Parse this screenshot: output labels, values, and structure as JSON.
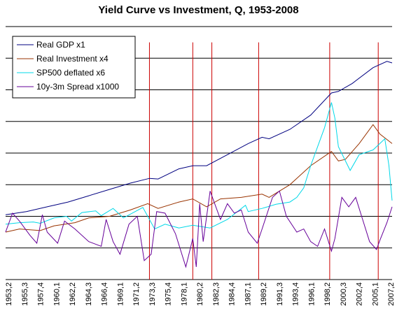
{
  "chart_data": {
    "type": "line",
    "title": "Yield Curve vs Investment, Q, 1953-2008",
    "xlabel": "",
    "ylabel": "",
    "x_range": [
      1953.0,
      2008.75
    ],
    "y_range": [
      -1,
      7
    ],
    "grid": true,
    "legend_placement": "top-left",
    "x_tick_labels": [
      "1953,2",
      "1955,3",
      "1957,4",
      "1960,1",
      "1962,2",
      "1964,3",
      "1966,4",
      "1969,1",
      "1971,2",
      "1973,3",
      "1975,4",
      "1978,1",
      "1980,2",
      "1982,3",
      "1984,4",
      "1987,1",
      "1989,2",
      "1991,3",
      "1993,4",
      "1996,1",
      "1998,2",
      "2000,3",
      "2002,4",
      "2005,1",
      "2007,2"
    ],
    "recession_lines": [
      1973.75,
      1980.0,
      1982.75,
      1989.5,
      1999.75,
      2006.75
    ],
    "recession_color": "#cc0000",
    "series": [
      {
        "name": "Real GDP x1",
        "color": "#000080",
        "x": [
          1953.0,
          1956,
          1959,
          1962,
          1965,
          1968,
          1971,
          1973.75,
          1975,
          1978,
          1980,
          1982,
          1985,
          1988,
          1990,
          1991,
          1994,
          1997,
          2000,
          2001,
          2003,
          2006,
          2008,
          2008.75
        ],
        "y": [
          1.05,
          1.15,
          1.3,
          1.45,
          1.65,
          1.85,
          2.05,
          2.2,
          2.18,
          2.5,
          2.6,
          2.6,
          2.95,
          3.3,
          3.5,
          3.45,
          3.75,
          4.2,
          4.9,
          4.95,
          5.2,
          5.7,
          5.9,
          5.85
        ]
      },
      {
        "name": "Real Investment x4",
        "color": "#993300",
        "x": [
          1953.0,
          1955,
          1958,
          1960,
          1963,
          1965,
          1968,
          1971,
          1973.5,
          1975,
          1978,
          1980,
          1982,
          1984,
          1987,
          1990,
          1991,
          1994,
          1997,
          2000,
          2001,
          2002,
          2004,
          2006,
          2007,
          2008.75
        ],
        "y": [
          0.5,
          0.6,
          0.55,
          0.7,
          0.8,
          0.95,
          1.0,
          1.2,
          1.4,
          1.25,
          1.45,
          1.55,
          1.3,
          1.55,
          1.6,
          1.7,
          1.6,
          2.0,
          2.6,
          3.05,
          2.75,
          2.8,
          3.3,
          3.9,
          3.6,
          3.3
        ]
      },
      {
        "name": "SP500 deflated x6",
        "color": "#00d8e8",
        "x": [
          1953.0,
          1955,
          1957,
          1958,
          1960,
          1961.8,
          1962.5,
          1964,
          1966,
          1966.8,
          1968.5,
          1970,
          1972.8,
          1974.5,
          1976,
          1978,
          1980,
          1982.5,
          1985,
          1987.6,
          1988,
          1990,
          1992,
          1994,
          1995,
          1996,
          1997,
          1998,
          1999,
          2000,
          2000.5,
          2001,
          2002.7,
          2004,
          2006,
          2007.7,
          2008.3,
          2008.75
        ],
        "y": [
          0.75,
          0.8,
          0.82,
          0.78,
          0.95,
          1.0,
          0.85,
          1.12,
          1.17,
          1.02,
          1.25,
          0.95,
          1.28,
          0.6,
          0.75,
          0.63,
          0.72,
          0.63,
          0.9,
          1.35,
          1.15,
          1.25,
          1.38,
          1.45,
          1.6,
          1.9,
          2.6,
          3.2,
          3.8,
          4.6,
          4.1,
          3.2,
          2.45,
          2.95,
          3.1,
          3.45,
          2.6,
          1.5
        ]
      },
      {
        "name": "10y-3m Spread x1000",
        "color": "#660099",
        "x": [
          1953.0,
          1954,
          1955,
          1956.5,
          1957.5,
          1958.3,
          1959,
          1960.5,
          1961.5,
          1963,
          1965,
          1966.8,
          1967.5,
          1968.5,
          1969.5,
          1970.8,
          1972,
          1973,
          1974,
          1974.8,
          1976,
          1977.5,
          1979,
          1980,
          1980.5,
          1981,
          1981.5,
          1982.5,
          1983,
          1984,
          1985,
          1986,
          1987,
          1988,
          1989.3,
          1990,
          1991.5,
          1992.5,
          1993.5,
          1995,
          1996,
          1997,
          1998,
          1999,
          2000,
          2000.5,
          2001.5,
          2002.5,
          2003.5,
          2004.5,
          2005.5,
          2006.5,
          2007,
          2008,
          2008.75
        ],
        "y": [
          0.5,
          1.1,
          0.85,
          0.4,
          0.15,
          1.05,
          0.5,
          0.15,
          0.85,
          0.6,
          0.2,
          0.05,
          0.9,
          0.2,
          -0.2,
          0.75,
          1.0,
          -0.4,
          -0.2,
          1.15,
          1.1,
          0.45,
          -0.6,
          0.3,
          -0.6,
          1.4,
          0.2,
          1.8,
          1.5,
          0.9,
          1.4,
          1.1,
          1.2,
          0.5,
          0.15,
          0.6,
          1.6,
          1.8,
          1.0,
          0.5,
          0.6,
          0.2,
          0.05,
          0.6,
          -0.1,
          0.3,
          1.6,
          1.3,
          1.6,
          0.9,
          0.2,
          -0.05,
          0.25,
          0.8,
          1.3
        ]
      }
    ]
  }
}
